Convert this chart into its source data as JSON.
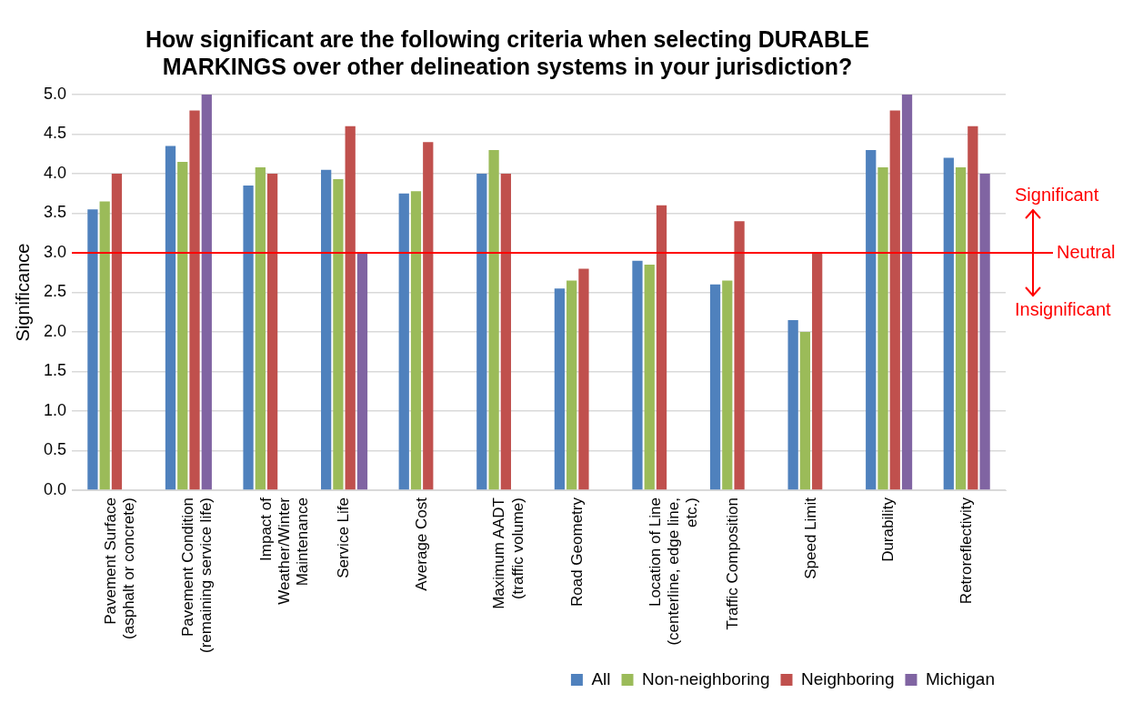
{
  "chart_data": {
    "type": "bar",
    "title": "How significant are the following criteria when selecting DURABLE MARKINGS over other delineation systems in your jurisdiction?",
    "ylabel": "Significance",
    "categories": [
      "Pavement Surface (asphalt or concrete)",
      "Pavement Condition (remaining service life)",
      "Impact of Weather/Winter Maintenance",
      "Service Life",
      "Average Cost",
      "Maximum AADT (traffic volume)",
      "Road Geometry",
      "Location of Line (centerline, edge line, etc.)",
      "Traffic Composition",
      "Speed Limit",
      "Durability",
      "Retroreflectivity"
    ],
    "series": [
      {
        "name": "All",
        "color": "#4f81bd",
        "values": [
          3.55,
          4.35,
          3.85,
          4.05,
          3.75,
          4.0,
          2.55,
          2.9,
          2.6,
          2.15,
          4.3,
          4.2
        ]
      },
      {
        "name": "Non-neighboring",
        "color": "#9bbb59",
        "values": [
          3.65,
          4.15,
          4.08,
          3.93,
          3.78,
          4.3,
          2.65,
          2.85,
          2.65,
          2.0,
          4.08,
          4.08
        ]
      },
      {
        "name": "Neighboring",
        "color": "#c0504d",
        "values": [
          4.0,
          4.8,
          4.0,
          4.6,
          4.4,
          4.0,
          2.8,
          3.6,
          3.4,
          3.0,
          4.8,
          4.6
        ]
      },
      {
        "name": "Michigan",
        "color": "#8064a2",
        "values": [
          null,
          5.0,
          null,
          3.0,
          null,
          null,
          null,
          null,
          null,
          null,
          5.0,
          4.0
        ]
      }
    ],
    "ylim": [
      0,
      5
    ],
    "yticks": [
      {
        "value": 0,
        "label": "0.0"
      },
      {
        "value": 0.5,
        "label": "0.5"
      },
      {
        "value": 1,
        "label": "1.0"
      },
      {
        "value": 1.5,
        "label": "1.5"
      },
      {
        "value": 2,
        "label": "2.0"
      },
      {
        "value": 2.5,
        "label": "2.5"
      },
      {
        "value": 3,
        "label": "3.0"
      },
      {
        "value": 3.5,
        "label": "3.5"
      },
      {
        "value": 4,
        "label": "4.0"
      },
      {
        "value": 4.5,
        "label": "4.5"
      },
      {
        "value": 5,
        "label": "5.0"
      }
    ],
    "grid": "y",
    "legend": "bottom right",
    "ref_lines": [
      {
        "axis": "y",
        "value": 3,
        "label": "Neutral",
        "color": "#ff0000"
      }
    ],
    "annotations": [
      "Significant",
      "Insignificant"
    ]
  }
}
